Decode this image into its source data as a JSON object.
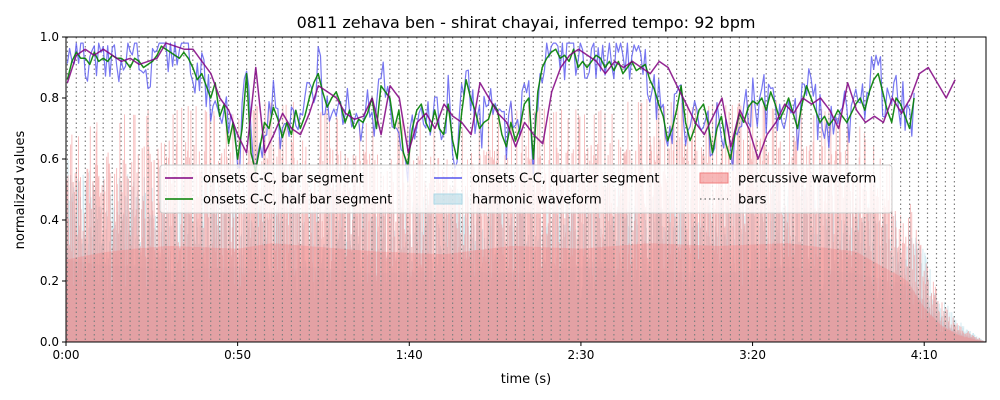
{
  "chart_data": {
    "type": "line",
    "title": "0811 zehava ben - shirat chayai, inferred tempo: 92 bpm",
    "xlabel": "time (s)",
    "ylabel": "normalized values",
    "xlim": [
      0,
      268
    ],
    "ylim": [
      0.0,
      1.0
    ],
    "x_ticks": [
      0,
      50,
      100,
      150,
      200,
      250
    ],
    "x_tick_labels": [
      "0:00",
      "0:50",
      "1:40",
      "2:30",
      "3:20",
      "4:10"
    ],
    "y_ticks": [
      0.0,
      0.2,
      0.4,
      0.6,
      0.8,
      1.0
    ],
    "y_tick_labels": [
      "0.0",
      "0.2",
      "0.4",
      "0.6",
      "0.8",
      "1.0"
    ],
    "grid": false,
    "legend_placement": "center",
    "bars": {
      "label": "bars",
      "start": 0.4,
      "interval": 2.61,
      "end": 260,
      "color": "#808080"
    },
    "waveforms": [
      {
        "name": "harmonic waveform",
        "color": "#add8e6",
        "envelope": [
          [
            0,
            0.6
          ],
          [
            10,
            0.56
          ],
          [
            20,
            0.55
          ],
          [
            30,
            0.52
          ],
          [
            50,
            0.55
          ],
          [
            60,
            0.5
          ],
          [
            70,
            0.55
          ],
          [
            90,
            0.5
          ],
          [
            110,
            0.52
          ],
          [
            130,
            0.5
          ],
          [
            150,
            0.55
          ],
          [
            170,
            0.52
          ],
          [
            190,
            0.5
          ],
          [
            210,
            0.55
          ],
          [
            230,
            0.5
          ],
          [
            245,
            0.42
          ],
          [
            250,
            0.3
          ],
          [
            255,
            0.15
          ],
          [
            260,
            0.07
          ],
          [
            268,
            0.0
          ]
        ]
      },
      {
        "name": "percussive waveform",
        "color": "#f08080",
        "envelope": [
          [
            0,
            0.6
          ],
          [
            10,
            0.65
          ],
          [
            20,
            0.68
          ],
          [
            30,
            0.7
          ],
          [
            50,
            0.68
          ],
          [
            60,
            0.72
          ],
          [
            70,
            0.7
          ],
          [
            90,
            0.66
          ],
          [
            110,
            0.64
          ],
          [
            130,
            0.7
          ],
          [
            150,
            0.68
          ],
          [
            170,
            0.72
          ],
          [
            190,
            0.7
          ],
          [
            210,
            0.72
          ],
          [
            230,
            0.66
          ],
          [
            245,
            0.45
          ],
          [
            250,
            0.25
          ],
          [
            255,
            0.12
          ],
          [
            260,
            0.05
          ],
          [
            268,
            0.0
          ]
        ]
      }
    ],
    "series": [
      {
        "name": "onsets C-C, bar segment",
        "color": "#800080",
        "x": [
          0.4,
          3.0,
          5.6,
          8.2,
          10.9,
          13.5,
          16.1,
          18.7,
          21.3,
          23.9,
          26.5,
          29.1,
          31.8,
          34.4,
          37.0,
          39.6,
          42.2,
          44.8,
          47.4,
          50.0,
          52.6,
          55.3,
          57.9,
          60.5,
          63.1,
          65.7,
          68.3,
          70.9,
          73.5,
          76.2,
          78.8,
          81.4,
          84.0,
          86.6,
          89.2,
          91.8,
          94.4,
          97.1,
          99.7,
          102.3,
          104.9,
          107.5,
          110.1,
          112.7,
          115.3,
          118.0,
          120.6,
          123.2,
          125.8,
          128.4,
          131.0,
          133.6,
          136.2,
          138.9,
          141.5,
          144.1,
          146.7,
          149.3,
          151.9,
          154.5,
          157.1,
          159.8,
          162.4,
          165.0,
          167.6,
          170.2,
          172.8,
          175.4,
          178.0,
          180.7,
          183.3,
          185.9,
          188.5,
          191.1,
          193.7,
          196.3,
          198.9,
          201.6,
          204.2,
          206.8,
          209.4,
          212.0,
          214.6,
          217.2,
          219.8,
          222.5,
          225.1,
          227.7,
          230.3,
          232.9,
          235.5,
          238.1,
          240.7,
          243.4,
          246.0,
          248.6,
          251.2,
          253.8,
          256.4,
          259.0
        ],
        "y": [
          0.85,
          0.94,
          0.96,
          0.94,
          0.96,
          0.94,
          0.92,
          0.93,
          0.91,
          0.92,
          0.93,
          0.98,
          0.97,
          0.96,
          0.96,
          0.92,
          0.88,
          0.8,
          0.76,
          0.68,
          0.62,
          0.9,
          0.62,
          0.68,
          0.75,
          0.7,
          0.68,
          0.75,
          0.84,
          0.82,
          0.8,
          0.75,
          0.73,
          0.74,
          0.8,
          0.68,
          0.84,
          0.8,
          0.62,
          0.72,
          0.75,
          0.7,
          0.78,
          0.74,
          0.72,
          0.68,
          0.85,
          0.8,
          0.75,
          0.72,
          0.64,
          0.72,
          0.68,
          0.65,
          0.82,
          0.9,
          0.94,
          0.96,
          0.94,
          0.92,
          0.88,
          0.92,
          0.9,
          0.92,
          0.9,
          0.88,
          0.92,
          0.9,
          0.84,
          0.78,
          0.72,
          0.68,
          0.74,
          0.8,
          0.64,
          0.76,
          0.7,
          0.6,
          0.68,
          0.72,
          0.78,
          0.75,
          0.8,
          0.78,
          0.8,
          0.76,
          0.7,
          0.85,
          0.76,
          0.72,
          0.74,
          0.72,
          0.8,
          0.75,
          0.8,
          0.88,
          0.9,
          0.85,
          0.8,
          0.86
        ],
        "line_width": 1.5
      },
      {
        "name": "onsets C-C, half bar segment",
        "color": "#008000",
        "x_step": 1.305,
        "x_start": 0.4,
        "y": [
          0.86,
          0.92,
          0.95,
          0.93,
          0.93,
          0.91,
          0.95,
          0.92,
          0.93,
          0.92,
          0.94,
          0.93,
          0.93,
          0.92,
          0.9,
          0.93,
          0.92,
          0.9,
          0.91,
          0.92,
          0.94,
          0.97,
          0.96,
          0.95,
          0.94,
          0.93,
          0.95,
          0.93,
          0.9,
          0.86,
          0.88,
          0.84,
          0.8,
          0.85,
          0.74,
          0.78,
          0.65,
          0.72,
          0.6,
          0.7,
          0.88,
          0.62,
          0.56,
          0.64,
          0.72,
          0.7,
          0.77,
          0.73,
          0.67,
          0.72,
          0.68,
          0.76,
          0.7,
          0.74,
          0.8,
          0.85,
          0.88,
          0.82,
          0.77,
          0.8,
          0.82,
          0.78,
          0.72,
          0.76,
          0.7,
          0.73,
          0.72,
          0.75,
          0.8,
          0.7,
          0.84,
          0.82,
          0.8,
          0.7,
          0.76,
          0.62,
          0.58,
          0.7,
          0.76,
          0.78,
          0.72,
          0.69,
          0.76,
          0.7,
          0.68,
          0.78,
          0.66,
          0.6,
          0.75,
          0.86,
          0.8,
          0.76,
          0.7,
          0.72,
          0.73,
          0.78,
          0.76,
          0.68,
          0.64,
          0.72,
          0.66,
          0.7,
          0.78,
          0.8,
          0.6,
          0.82,
          0.9,
          0.93,
          0.95,
          0.96,
          0.93,
          0.94,
          0.92,
          0.96,
          0.9,
          0.92,
          0.9,
          0.92,
          0.94,
          0.93,
          0.9,
          0.92,
          0.89,
          0.92,
          0.88,
          0.9,
          0.92,
          0.89,
          0.9,
          0.91,
          0.86,
          0.83,
          0.78,
          0.74,
          0.66,
          0.7,
          0.76,
          0.84,
          0.72,
          0.66,
          0.7,
          0.76,
          0.78,
          0.72,
          0.62,
          0.7,
          0.74,
          0.65,
          0.6,
          0.68,
          0.75,
          0.72,
          0.77,
          0.79,
          0.78,
          0.8,
          0.76,
          0.82,
          0.78,
          0.73,
          0.76,
          0.8,
          0.75,
          0.7,
          0.78,
          0.84,
          0.8,
          0.76,
          0.72,
          0.74,
          0.71,
          0.73,
          0.76,
          0.74,
          0.72,
          0.75,
          0.78,
          0.8,
          0.76,
          0.82,
          0.86,
          0.88,
          0.82,
          0.76,
          0.72,
          0.8,
          0.78,
          0.74,
          0.7,
          0.8
        ],
        "line_width": 1.5
      },
      {
        "name": "onsets C-C, quarter segment",
        "color": "#5555ee",
        "x_step": 0.6525,
        "x_start": 0.4,
        "seed": 811,
        "line_width": 1.2
      }
    ]
  }
}
